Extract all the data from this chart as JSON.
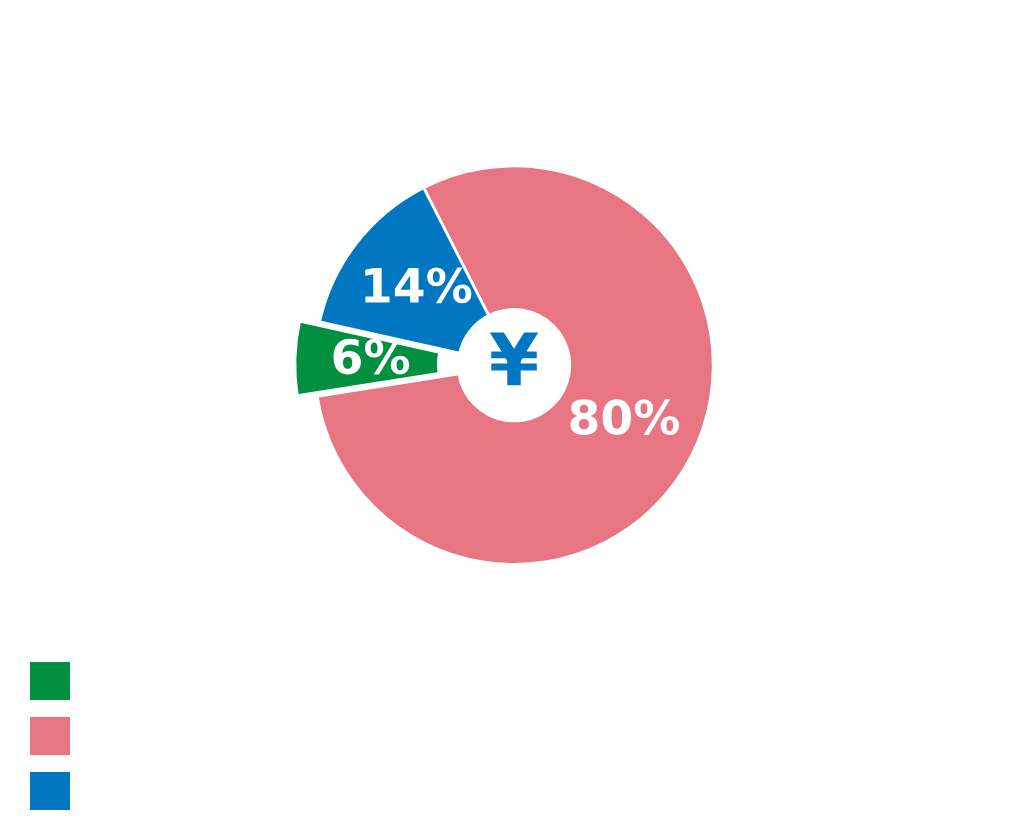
{
  "chart_data": {
    "type": "donut",
    "categories": [
      null,
      null,
      null
    ],
    "values": [
      6,
      80,
      14
    ],
    "colors": [
      "#009040",
      "#e87582",
      "#0077c0"
    ],
    "value_labels": [
      "6%",
      "80%",
      "14%"
    ],
    "annotations": [
      "¥"
    ]
  }
}
